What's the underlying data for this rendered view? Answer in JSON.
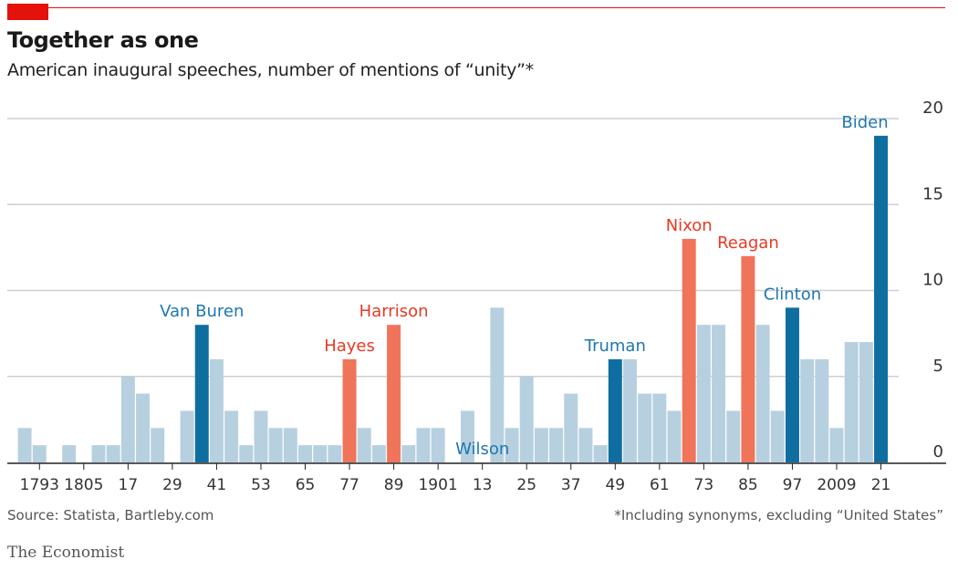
{
  "header": {
    "title": "Together as one",
    "subtitle": "American inaugural speeches, number of mentions of “unity”*"
  },
  "footer": {
    "source": "Source: Statista, Bartleby.com",
    "footnote": "*Including synonyms, excluding “United States”",
    "brand": "The Economist"
  },
  "colors": {
    "base": "#b7d0e0",
    "democrat": "#0f6ea0",
    "republican": "#f0745a",
    "democrat_label": "#1f77b0",
    "republican_label": "#e63a23",
    "grid": "#cfcfcf",
    "accent": "#e3120b"
  },
  "chart_data": {
    "type": "bar",
    "title": "Together as one",
    "subtitle": "American inaugural speeches, number of mentions of “unity”*",
    "ylim": [
      0,
      20
    ],
    "yticks": [
      0,
      5,
      10,
      15,
      20
    ],
    "y_axis_side": "right",
    "grid": true,
    "x_tick_labels": [
      "1793",
      "1805",
      "17",
      "29",
      "41",
      "53",
      "65",
      "77",
      "89",
      "1901",
      "13",
      "25",
      "37",
      "49",
      "61",
      "73",
      "85",
      "97",
      "2009",
      "21"
    ],
    "x_tick_years": [
      1793,
      1805,
      1817,
      1829,
      1841,
      1853,
      1865,
      1877,
      1889,
      1901,
      1913,
      1925,
      1937,
      1949,
      1961,
      1973,
      1985,
      1997,
      2009,
      2021
    ],
    "years": [
      1789,
      1793,
      1797,
      1801,
      1805,
      1809,
      1813,
      1817,
      1821,
      1825,
      1829,
      1833,
      1837,
      1841,
      1845,
      1849,
      1853,
      1857,
      1861,
      1865,
      1869,
      1873,
      1877,
      1881,
      1885,
      1889,
      1893,
      1897,
      1901,
      1905,
      1909,
      1913,
      1917,
      1921,
      1925,
      1929,
      1933,
      1937,
      1941,
      1945,
      1949,
      1953,
      1957,
      1961,
      1965,
      1969,
      1973,
      1977,
      1981,
      1985,
      1989,
      1993,
      1997,
      2001,
      2005,
      2009,
      2013,
      2017,
      2021
    ],
    "values": [
      2,
      1,
      0,
      1,
      0,
      1,
      1,
      5,
      4,
      2,
      0,
      3,
      8,
      6,
      3,
      1,
      3,
      2,
      2,
      1,
      1,
      1,
      6,
      2,
      1,
      8,
      1,
      2,
      2,
      0,
      3,
      0,
      9,
      2,
      5,
      2,
      2,
      4,
      2,
      1,
      6,
      6,
      4,
      4,
      3,
      13,
      8,
      8,
      3,
      12,
      8,
      3,
      9,
      6,
      6,
      2,
      7,
      7,
      19
    ],
    "highlights": [
      {
        "year": 1837,
        "name": "Van Buren",
        "party": "democrat"
      },
      {
        "year": 1877,
        "name": "Hayes",
        "party": "republican"
      },
      {
        "year": 1889,
        "name": "Harrison",
        "party": "republican"
      },
      {
        "year": 1913,
        "name": "Wilson",
        "party": "democrat"
      },
      {
        "year": 1949,
        "name": "Truman",
        "party": "democrat"
      },
      {
        "year": 1969,
        "name": "Nixon",
        "party": "republican"
      },
      {
        "year": 1985,
        "name": "Reagan",
        "party": "republican"
      },
      {
        "year": 1997,
        "name": "Clinton",
        "party": "democrat"
      },
      {
        "year": 2021,
        "name": "Biden",
        "party": "democrat"
      }
    ]
  }
}
